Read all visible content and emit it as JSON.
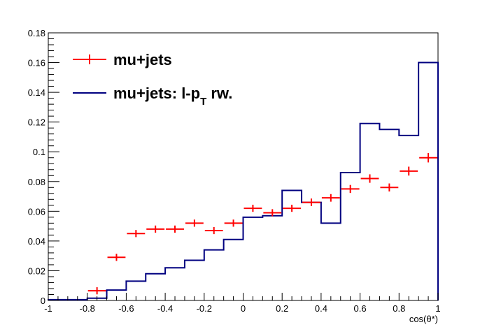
{
  "chart_data": {
    "type": "line",
    "title": "",
    "xlabel": "cos(θ*)",
    "ylabel": "",
    "xlim": [
      -1,
      1
    ],
    "ylim": [
      0,
      0.18
    ],
    "x_ticks": [
      "-1",
      "-0.8",
      "-0.6",
      "-0.4",
      "-0.2",
      "0",
      "0.2",
      "0.4",
      "0.6",
      "0.8",
      "1"
    ],
    "y_ticks": [
      "0",
      "0.02",
      "0.04",
      "0.06",
      "0.08",
      "0.1",
      "0.12",
      "0.14",
      "0.16",
      "0.18"
    ],
    "bin_edges": [
      -1,
      -0.9,
      -0.8,
      -0.7,
      -0.6,
      -0.5,
      -0.4,
      -0.3,
      -0.2,
      -0.1,
      0,
      0.1,
      0.2,
      0.3,
      0.4,
      0.5,
      0.6,
      0.7,
      0.8,
      0.9,
      1
    ],
    "legend_position": "top-left",
    "grid": false,
    "series": [
      {
        "name": "mu+jets",
        "name_sub": "",
        "style": "markers-with-errors",
        "color": "#ff0000",
        "values": [
          0,
          0,
          0.0065,
          0.029,
          0.045,
          0.048,
          0.048,
          0.052,
          0.047,
          0.052,
          0.062,
          0.059,
          0.062,
          0.066,
          0.069,
          0.075,
          0.082,
          0.076,
          0.087,
          0.096
        ],
        "errors": [
          0,
          0,
          0.001,
          0.0012,
          0.0014,
          0.0014,
          0.0014,
          0.0015,
          0.0014,
          0.0015,
          0.0016,
          0.0016,
          0.0016,
          0.0017,
          0.0017,
          0.0018,
          0.0019,
          0.0018,
          0.002,
          0.0021
        ]
      },
      {
        "name": "mu+jets: l-p",
        "name_sub": "T",
        "name_suffix": " rw.",
        "style": "step",
        "color": "#000080",
        "values": [
          0.0005,
          0.0005,
          0.0015,
          0.007,
          0.013,
          0.018,
          0.022,
          0.027,
          0.034,
          0.041,
          0.056,
          0.057,
          0.074,
          0.066,
          0.052,
          0.086,
          0.119,
          0.115,
          0.111,
          0.16
        ]
      }
    ]
  }
}
